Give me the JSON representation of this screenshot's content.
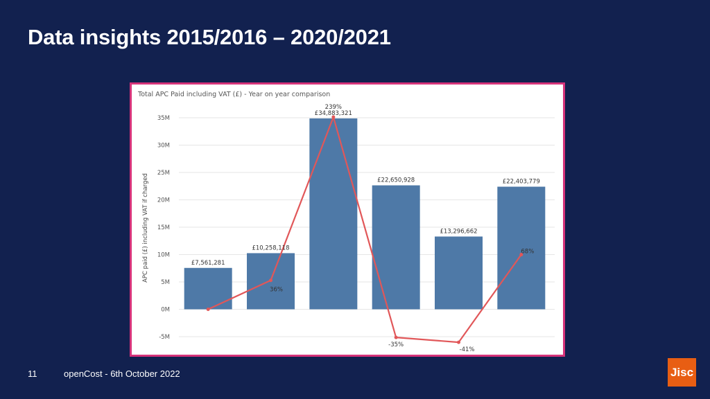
{
  "slide": {
    "title": "Data insights 2015/2016 – 2020/2021",
    "page_number": "11",
    "footer": "openCost -  6th October 2022",
    "logo_text": "Jisc"
  },
  "colors": {
    "background": "#12214f",
    "bar": "#4e79a7",
    "line": "#e15759",
    "frame": "#d6337a",
    "logo": "#e85e13"
  },
  "chart_data": {
    "type": "bar",
    "title": "Total APC Paid including VAT (£) - Year on year comparison",
    "ylabel": "APC paid (£) including VAT if charged",
    "ylim": [
      -5000000,
      35000000
    ],
    "yticks": [
      -5000000,
      0,
      5000000,
      10000000,
      15000000,
      20000000,
      25000000,
      30000000,
      35000000
    ],
    "ytick_labels": [
      "-5M",
      "0M",
      "5M",
      "10M",
      "15M",
      "20M",
      "25M",
      "30M",
      "35M"
    ],
    "grid": true,
    "bar_series": {
      "values": [
        7561281,
        10258118,
        34883321,
        22650928,
        13296662,
        22403779
      ],
      "labels": [
        "£7,561,281",
        "£10,258,118",
        "£34,883,321",
        "£22,650,928",
        "£13,296,662",
        "£22,403,779"
      ]
    },
    "line_series": {
      "values": [
        0,
        36,
        239,
        -35,
        -41,
        68
      ],
      "labels": [
        "",
        "36%",
        "239%",
        "-35%",
        "-41%",
        "68%"
      ]
    }
  }
}
